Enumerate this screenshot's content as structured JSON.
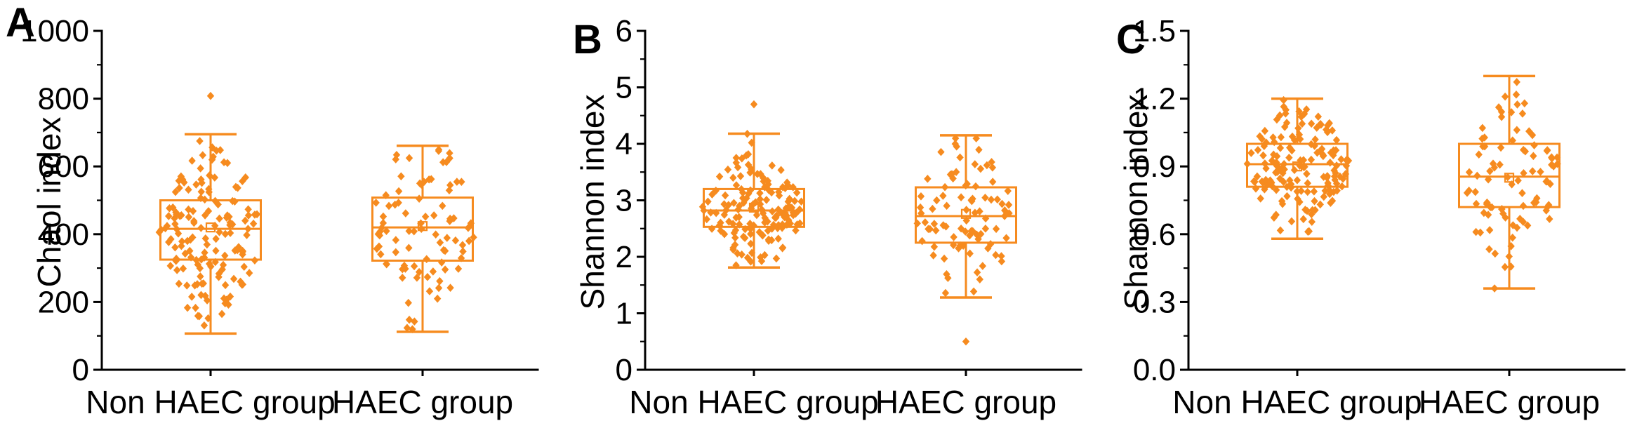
{
  "chart_data": {
    "type": "box",
    "subtype": "box-with-jittered-scatter",
    "orientation": "vertical",
    "point_marker": "diamond",
    "accent_color": "#F68B1F",
    "axis_color": "#000000",
    "background_color": "#FFFFFF",
    "legend": "none",
    "grid": "off",
    "groups": [
      "Non HAEC group",
      "HAEC group"
    ],
    "panels": [
      {
        "letter": "A",
        "y_label": "Chaol index",
        "y_min": 0,
        "y_max": 1000,
        "major_step": 200,
        "minor_step": 100,
        "y_tick_labels": [
          "0",
          "200",
          "400",
          "600",
          "800",
          "1000"
        ],
        "series": [
          {
            "group": "Non HAEC group",
            "n_points": 150,
            "seed": 101,
            "box": {
              "whisker_low": 107,
              "q1": 325,
              "median": 416,
              "q3": 500,
              "whisker_high": 695,
              "mean": 420
            },
            "outliers": [
              808
            ]
          },
          {
            "group": "HAEC group",
            "n_points": 88,
            "seed": 102,
            "box": {
              "whisker_low": 112,
              "q1": 322,
              "median": 420,
              "q3": 508,
              "whisker_high": 661,
              "mean": 424
            },
            "outliers": []
          }
        ]
      },
      {
        "letter": "B",
        "y_label": "Shannon index",
        "y_min": 0,
        "y_max": 6,
        "major_step": 1,
        "minor_step": 0.5,
        "y_tick_labels": [
          "0",
          "1",
          "2",
          "3",
          "4",
          "5",
          "6"
        ],
        "series": [
          {
            "group": "Non HAEC group",
            "n_points": 150,
            "seed": 201,
            "box": {
              "whisker_low": 1.81,
              "q1": 2.53,
              "median": 2.82,
              "q3": 3.2,
              "whisker_high": 4.18,
              "mean": 2.87
            },
            "outliers": [
              4.7
            ]
          },
          {
            "group": "HAEC group",
            "n_points": 88,
            "seed": 202,
            "box": {
              "whisker_low": 1.28,
              "q1": 2.25,
              "median": 2.72,
              "q3": 3.23,
              "whisker_high": 4.15,
              "mean": 2.76
            },
            "outliers": [
              0.5
            ]
          }
        ]
      },
      {
        "letter": "C",
        "y_label": "Shannon index",
        "y_min": 0,
        "y_max": 1.5,
        "major_step": 0.3,
        "minor_step": 0.15,
        "y_tick_labels": [
          "0.0",
          "0.3",
          "0.6",
          "0.9",
          "1.2",
          "1.5"
        ],
        "series": [
          {
            "group": "Non HAEC group",
            "n_points": 158,
            "seed": 301,
            "box": {
              "whisker_low": 0.58,
              "q1": 0.81,
              "median": 0.91,
              "q3": 1.0,
              "whisker_high": 1.2,
              "mean": 0.9
            },
            "outliers": []
          },
          {
            "group": "HAEC group",
            "n_points": 88,
            "seed": 302,
            "box": {
              "whisker_low": 0.36,
              "q1": 0.72,
              "median": 0.855,
              "q3": 1.0,
              "whisker_high": 1.3,
              "mean": 0.85
            },
            "outliers": []
          }
        ]
      }
    ]
  }
}
